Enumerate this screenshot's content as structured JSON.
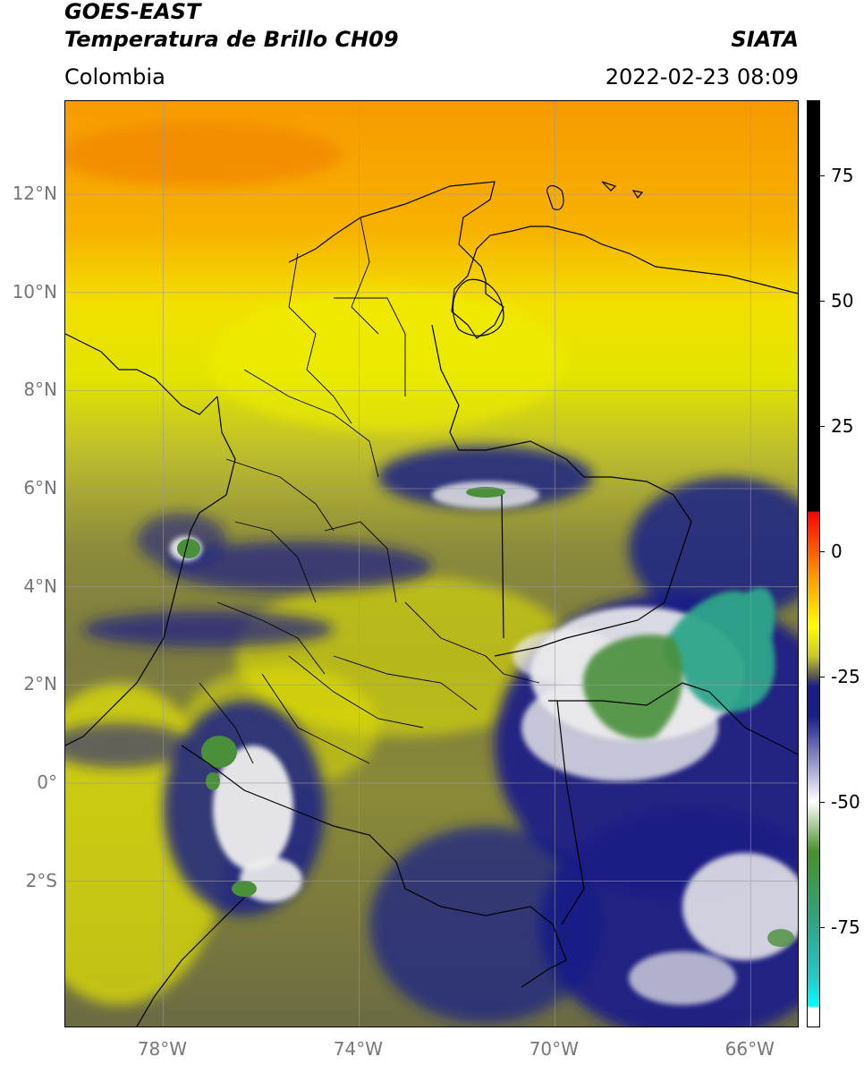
{
  "header": {
    "title_line1": "GOES-EAST",
    "title_line2": "Temperatura de Brillo CH09",
    "brand": "SIATA",
    "region": "Colombia",
    "timestamp": "2022-02-23 08:09"
  },
  "map": {
    "lon_range": [
      -80,
      -65
    ],
    "lat_range": [
      -5,
      13.9
    ],
    "lat_ticks": [
      {
        "value": 12,
        "label": "12°N"
      },
      {
        "value": 10,
        "label": "10°N"
      },
      {
        "value": 8,
        "label": "8°N"
      },
      {
        "value": 6,
        "label": "6°N"
      },
      {
        "value": 4,
        "label": "4°N"
      },
      {
        "value": 2,
        "label": "2°N"
      },
      {
        "value": 0,
        "label": "0°"
      },
      {
        "value": -2,
        "label": "2°S"
      }
    ],
    "lon_ticks": [
      {
        "value": -78,
        "label": "78°W"
      },
      {
        "value": -74,
        "label": "74°W"
      },
      {
        "value": -70,
        "label": "70°W"
      },
      {
        "value": -66,
        "label": "66°W"
      }
    ],
    "colors": {
      "warm_top": "#f7a000",
      "mid_yellow": "#e8e800",
      "olive": "#8a8a3a",
      "deep_blue": "#1a1f86",
      "cold_white": "#f4f4f4",
      "green": "#3f8f3a",
      "teal": "#2fa68a",
      "border_line": "#000000",
      "gridline": "#9a9a9a"
    }
  },
  "colorbar": {
    "range": [
      -95,
      90
    ],
    "ticks": [
      {
        "value": 75,
        "label": "75"
      },
      {
        "value": 50,
        "label": "50"
      },
      {
        "value": 25,
        "label": "25"
      },
      {
        "value": 0,
        "label": "0"
      },
      {
        "value": -25,
        "label": "-25"
      },
      {
        "value": -50,
        "label": "-50"
      },
      {
        "value": -75,
        "label": "-75"
      }
    ],
    "stops": [
      {
        "value": 90,
        "color": "#000000"
      },
      {
        "value": 8,
        "color": "#000000"
      },
      {
        "value": 7.9,
        "color": "#ff0000"
      },
      {
        "value": -5,
        "color": "#ff9900"
      },
      {
        "value": -15,
        "color": "#ffff00"
      },
      {
        "value": -21,
        "color": "#c8c828"
      },
      {
        "value": -25,
        "color": "#555555"
      },
      {
        "value": -27,
        "color": "#1a1f86"
      },
      {
        "value": -33,
        "color": "#1a1f86"
      },
      {
        "value": -45,
        "color": "#bbbbdd"
      },
      {
        "value": -50,
        "color": "#ffffff"
      },
      {
        "value": -60,
        "color": "#4a8f2a"
      },
      {
        "value": -75,
        "color": "#2fa68a"
      },
      {
        "value": -85,
        "color": "#25c8c8"
      },
      {
        "value": -91,
        "color": "#00ffff"
      },
      {
        "value": -91.1,
        "color": "#ffffff"
      },
      {
        "value": -95,
        "color": "#ffffff"
      }
    ]
  }
}
